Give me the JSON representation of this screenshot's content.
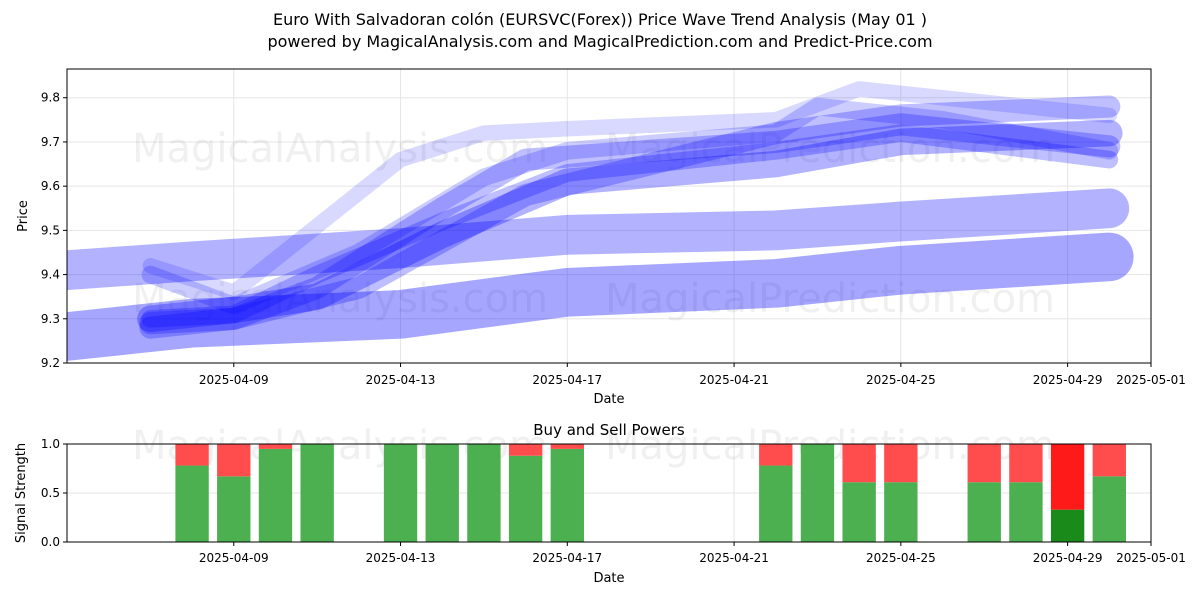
{
  "title": "Euro With Salvadoran colón (EURSVC(Forex)) Price Wave Trend Analysis (May 01 )",
  "subtitle": "powered by MagicalAnalysis.com and MagicalPrediction.com and Predict-Price.com",
  "watermarks": [
    "MagicalAnalysis.com",
    "MagicalPrediction.com"
  ],
  "colors": {
    "wave": "#0000ff",
    "buy": "#4caf50",
    "sell": "#ff4d4d",
    "buy_strong": "#1a8a1a",
    "sell_strong": "#ff1a1a"
  },
  "chart_data": [
    {
      "type": "area",
      "title": "",
      "xlabel": "Date",
      "ylabel": "Price",
      "xlim": [
        "2025-04-05",
        "2025-05-01"
      ],
      "ylim": [
        9.2,
        9.865
      ],
      "yticks": [
        9.2,
        9.3,
        9.4,
        9.5,
        9.6,
        9.7,
        9.8
      ],
      "xticks": [
        "2025-04-09",
        "2025-04-13",
        "2025-04-17",
        "2025-04-21",
        "2025-04-25",
        "2025-04-29",
        "2025-05-01"
      ],
      "grid": true,
      "series": [
        {
          "x": [
            "2025-04-05",
            "2025-04-08",
            "2025-04-13",
            "2025-04-17",
            "2025-04-22",
            "2025-04-25",
            "2025-04-30"
          ],
          "y": [
            9.26,
            9.29,
            9.31,
            9.36,
            9.38,
            9.41,
            9.44
          ],
          "width": 0.11,
          "opacity": 0.35
        },
        {
          "x": [
            "2025-04-05",
            "2025-04-08",
            "2025-04-13",
            "2025-04-17",
            "2025-04-22",
            "2025-04-25",
            "2025-04-30"
          ],
          "y": [
            9.41,
            9.43,
            9.46,
            9.49,
            9.5,
            9.52,
            9.55
          ],
          "width": 0.09,
          "opacity": 0.3
        },
        {
          "x": [
            "2025-04-07",
            "2025-04-09",
            "2025-04-11",
            "2025-04-14",
            "2025-04-17",
            "2025-04-22",
            "2025-04-25",
            "2025-04-30"
          ],
          "y": [
            9.3,
            9.32,
            9.35,
            9.49,
            9.61,
            9.65,
            9.7,
            9.72
          ],
          "width": 0.06,
          "opacity": 0.3
        },
        {
          "x": [
            "2025-04-07",
            "2025-04-09",
            "2025-04-11",
            "2025-04-14",
            "2025-04-16",
            "2025-04-22",
            "2025-04-25",
            "2025-04-30"
          ],
          "y": [
            9.28,
            9.3,
            9.37,
            9.55,
            9.66,
            9.7,
            9.74,
            9.69
          ],
          "width": 0.05,
          "opacity": 0.25
        },
        {
          "x": [
            "2025-04-07",
            "2025-04-09",
            "2025-04-12",
            "2025-04-15",
            "2025-04-17",
            "2025-04-22",
            "2025-04-23",
            "2025-04-26",
            "2025-04-30"
          ],
          "y": [
            9.4,
            9.33,
            9.45,
            9.62,
            9.68,
            9.72,
            9.78,
            9.75,
            9.68
          ],
          "width": 0.04,
          "opacity": 0.2
        },
        {
          "x": [
            "2025-04-07",
            "2025-04-09",
            "2025-04-13",
            "2025-04-15",
            "2025-04-17",
            "2025-04-22",
            "2025-04-24",
            "2025-04-30"
          ],
          "y": [
            9.42,
            9.36,
            9.66,
            9.72,
            9.73,
            9.75,
            9.82,
            9.76
          ],
          "width": 0.035,
          "opacity": 0.15
        },
        {
          "x": [
            "2025-04-07",
            "2025-04-09",
            "2025-04-11",
            "2025-04-14",
            "2025-04-17",
            "2025-04-22",
            "2025-04-25",
            "2025-04-30"
          ],
          "y": [
            9.3,
            9.31,
            9.4,
            9.52,
            9.63,
            9.68,
            9.72,
            9.66
          ],
          "width": 0.04,
          "opacity": 0.25
        },
        {
          "x": [
            "2025-04-07",
            "2025-04-09",
            "2025-04-12",
            "2025-04-16",
            "2025-04-22",
            "2025-04-25",
            "2025-04-30"
          ],
          "y": [
            9.29,
            9.3,
            9.37,
            9.58,
            9.72,
            9.76,
            9.78
          ],
          "width": 0.05,
          "opacity": 0.25
        }
      ]
    },
    {
      "type": "bar",
      "title": "Buy and Sell Powers",
      "xlabel": "Date",
      "ylabel": "Signal Strength",
      "xlim": [
        "2025-04-05",
        "2025-05-01"
      ],
      "ylim": [
        0,
        1
      ],
      "yticks": [
        "0.0",
        "0.5",
        "1.0"
      ],
      "xticks": [
        "2025-04-09",
        "2025-04-13",
        "2025-04-17",
        "2025-04-21",
        "2025-04-25",
        "2025-04-29",
        "2025-05-01"
      ],
      "grid": true,
      "categories": [
        "2025-04-08",
        "2025-04-09",
        "2025-04-10",
        "2025-04-11",
        "2025-04-13",
        "2025-04-14",
        "2025-04-15",
        "2025-04-16",
        "2025-04-17",
        "2025-04-22",
        "2025-04-23",
        "2025-04-24",
        "2025-04-25",
        "2025-04-27",
        "2025-04-28",
        "2025-04-29",
        "2025-04-30"
      ],
      "series": [
        {
          "name": "Buy",
          "values": [
            0.78,
            0.67,
            0.95,
            1.0,
            1.0,
            1.0,
            1.0,
            0.88,
            0.95,
            0.78,
            1.0,
            0.61,
            0.61,
            0.61,
            0.61,
            0.33,
            0.67
          ]
        },
        {
          "name": "Sell",
          "values": [
            0.22,
            0.33,
            0.05,
            0.0,
            0.0,
            0.0,
            0.0,
            0.12,
            0.05,
            0.22,
            0.0,
            0.39,
            0.39,
            0.39,
            0.39,
            0.67,
            0.33
          ]
        }
      ],
      "strong_dates": [
        "2025-04-29"
      ]
    }
  ]
}
